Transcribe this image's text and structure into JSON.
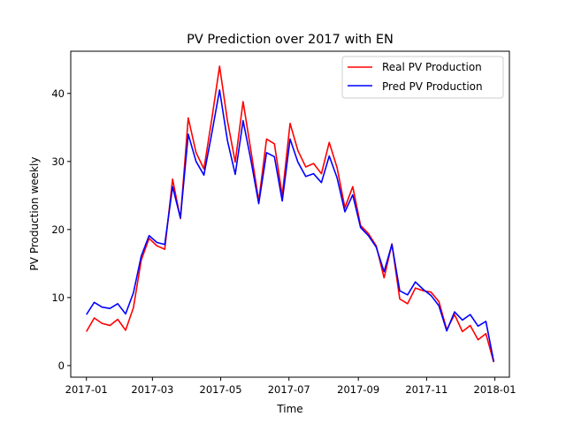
{
  "chart_data": {
    "type": "line",
    "title": "PV Prediction over 2017 with EN",
    "xlabel": "Time",
    "ylabel": "PV Production weekly",
    "x_ticks": [
      "2017-01",
      "2017-03",
      "2017-05",
      "2017-07",
      "2017-09",
      "2017-11",
      "2018-01"
    ],
    "y_ticks": [
      0,
      10,
      20,
      30,
      40
    ],
    "xlim": [
      "2016-12-18",
      "2018-01-14"
    ],
    "ylim": [
      -1.7,
      46.2
    ],
    "legend_position": "top-right",
    "x": [
      "2017-01-01",
      "2017-01-08",
      "2017-01-15",
      "2017-01-22",
      "2017-01-29",
      "2017-02-05",
      "2017-02-12",
      "2017-02-19",
      "2017-02-26",
      "2017-03-05",
      "2017-03-12",
      "2017-03-19",
      "2017-03-26",
      "2017-04-02",
      "2017-04-09",
      "2017-04-16",
      "2017-04-23",
      "2017-04-30",
      "2017-05-07",
      "2017-05-14",
      "2017-05-21",
      "2017-05-28",
      "2017-06-04",
      "2017-06-11",
      "2017-06-18",
      "2017-06-25",
      "2017-07-02",
      "2017-07-09",
      "2017-07-16",
      "2017-07-23",
      "2017-07-30",
      "2017-08-06",
      "2017-08-13",
      "2017-08-20",
      "2017-08-27",
      "2017-09-03",
      "2017-09-10",
      "2017-09-17",
      "2017-09-24",
      "2017-10-01",
      "2017-10-08",
      "2017-10-15",
      "2017-10-22",
      "2017-10-29",
      "2017-11-05",
      "2017-11-12",
      "2017-11-19",
      "2017-11-26",
      "2017-12-03",
      "2017-12-10",
      "2017-12-17",
      "2017-12-24",
      "2017-12-31"
    ],
    "series": [
      {
        "name": "Real PV Production",
        "color": "#ff0000",
        "values": [
          5.0,
          7.0,
          6.2,
          5.9,
          6.8,
          5.2,
          8.5,
          15.5,
          18.7,
          17.6,
          17.1,
          27.4,
          21.6,
          36.4,
          31.3,
          28.9,
          36.2,
          44.0,
          36.0,
          29.9,
          38.8,
          31.6,
          24.2,
          33.3,
          32.6,
          25.0,
          35.6,
          31.6,
          29.2,
          29.7,
          28.2,
          32.8,
          29.1,
          23.2,
          26.3,
          20.6,
          19.4,
          17.6,
          12.9,
          17.9,
          9.8,
          9.1,
          11.4,
          11.0,
          10.8,
          9.4,
          5.3,
          7.5,
          5.0,
          5.9,
          3.8,
          4.7,
          0.5
        ]
      },
      {
        "name": "Pred PV Production",
        "color": "#0000ff",
        "values": [
          7.5,
          9.3,
          8.6,
          8.4,
          9.1,
          7.6,
          10.7,
          16.1,
          19.1,
          18.1,
          17.8,
          26.3,
          21.7,
          34.0,
          30.0,
          28.0,
          34.1,
          40.5,
          33.1,
          28.1,
          36.0,
          30.2,
          23.8,
          31.3,
          30.7,
          24.2,
          33.3,
          29.9,
          27.8,
          28.2,
          26.9,
          30.8,
          27.6,
          22.6,
          25.1,
          20.3,
          19.1,
          17.4,
          13.8,
          17.8,
          11.0,
          10.4,
          12.3,
          11.2,
          10.3,
          8.8,
          5.1,
          7.9,
          6.7,
          7.5,
          5.8,
          6.5,
          0.6
        ]
      }
    ]
  }
}
